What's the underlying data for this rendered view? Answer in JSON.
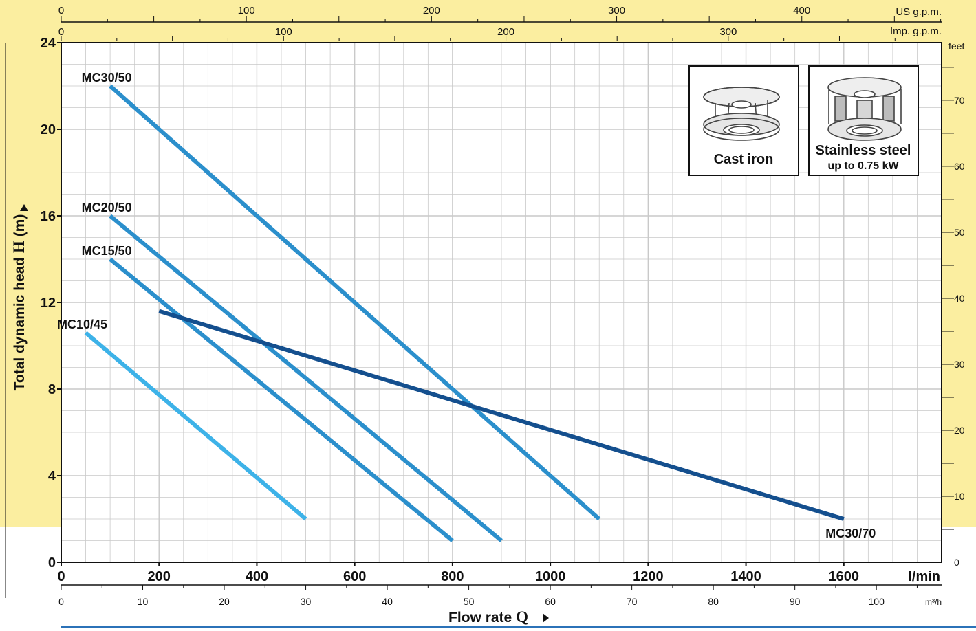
{
  "chart_data": {
    "type": "line",
    "ylabel": "Total dynamic head",
    "ylabel_symbol": "H",
    "ylabel_unit": "(m)",
    "xlabel": "Flow rate",
    "xlabel_symbol": "Q",
    "ylim": [
      0,
      24
    ],
    "y_ticks": [
      0,
      4,
      8,
      12,
      16,
      20,
      24
    ],
    "xlim_lmin": [
      0,
      1800
    ],
    "x_ticks_lmin": [
      0,
      200,
      400,
      600,
      800,
      1000,
      1200,
      1400,
      1600
    ],
    "x_unit_lmin": "l/min",
    "x_ticks_m3h": [
      0,
      10,
      20,
      30,
      40,
      50,
      60,
      70,
      80,
      90,
      100
    ],
    "x_unit_m3h": "m³/h",
    "x_ticks_usgpm": [
      0,
      100,
      200,
      300,
      400
    ],
    "x_unit_usgpm": "US g.p.m.",
    "x_ticks_impgpm": [
      0,
      100,
      200,
      300
    ],
    "x_unit_impgpm": "Imp. g.p.m.",
    "y_ticks_feet": [
      0,
      10,
      20,
      30,
      40,
      50,
      60,
      70
    ],
    "y_unit_feet": "feet",
    "grid": true,
    "series": [
      {
        "name": "MC30/50",
        "color": "#2b8fcc",
        "x": [
          100,
          1100
        ],
        "y": [
          22,
          2
        ],
        "label_at": "start"
      },
      {
        "name": "MC20/50",
        "color": "#2b8fcc",
        "x": [
          100,
          900
        ],
        "y": [
          16,
          1
        ],
        "label_at": "start"
      },
      {
        "name": "MC15/50",
        "color": "#2b8fcc",
        "x": [
          100,
          800
        ],
        "y": [
          14,
          1
        ],
        "label_at": "start"
      },
      {
        "name": "MC10/45",
        "color": "#3db2e8",
        "x": [
          50,
          500
        ],
        "y": [
          10.6,
          2
        ],
        "label_at": "start"
      },
      {
        "name": "MC30/70",
        "color": "#144f8e",
        "x": [
          200,
          1600
        ],
        "y": [
          11.6,
          2
        ],
        "label_at": "end"
      }
    ]
  },
  "legend_images": [
    {
      "title": "Cast iron",
      "subtitle": ""
    },
    {
      "title": "Stainless steel",
      "subtitle": "up to 0.75 kW"
    }
  ],
  "colors": {
    "background_band": "#fbeea0",
    "grid": "#c9c9c9",
    "axis": "#111111"
  }
}
